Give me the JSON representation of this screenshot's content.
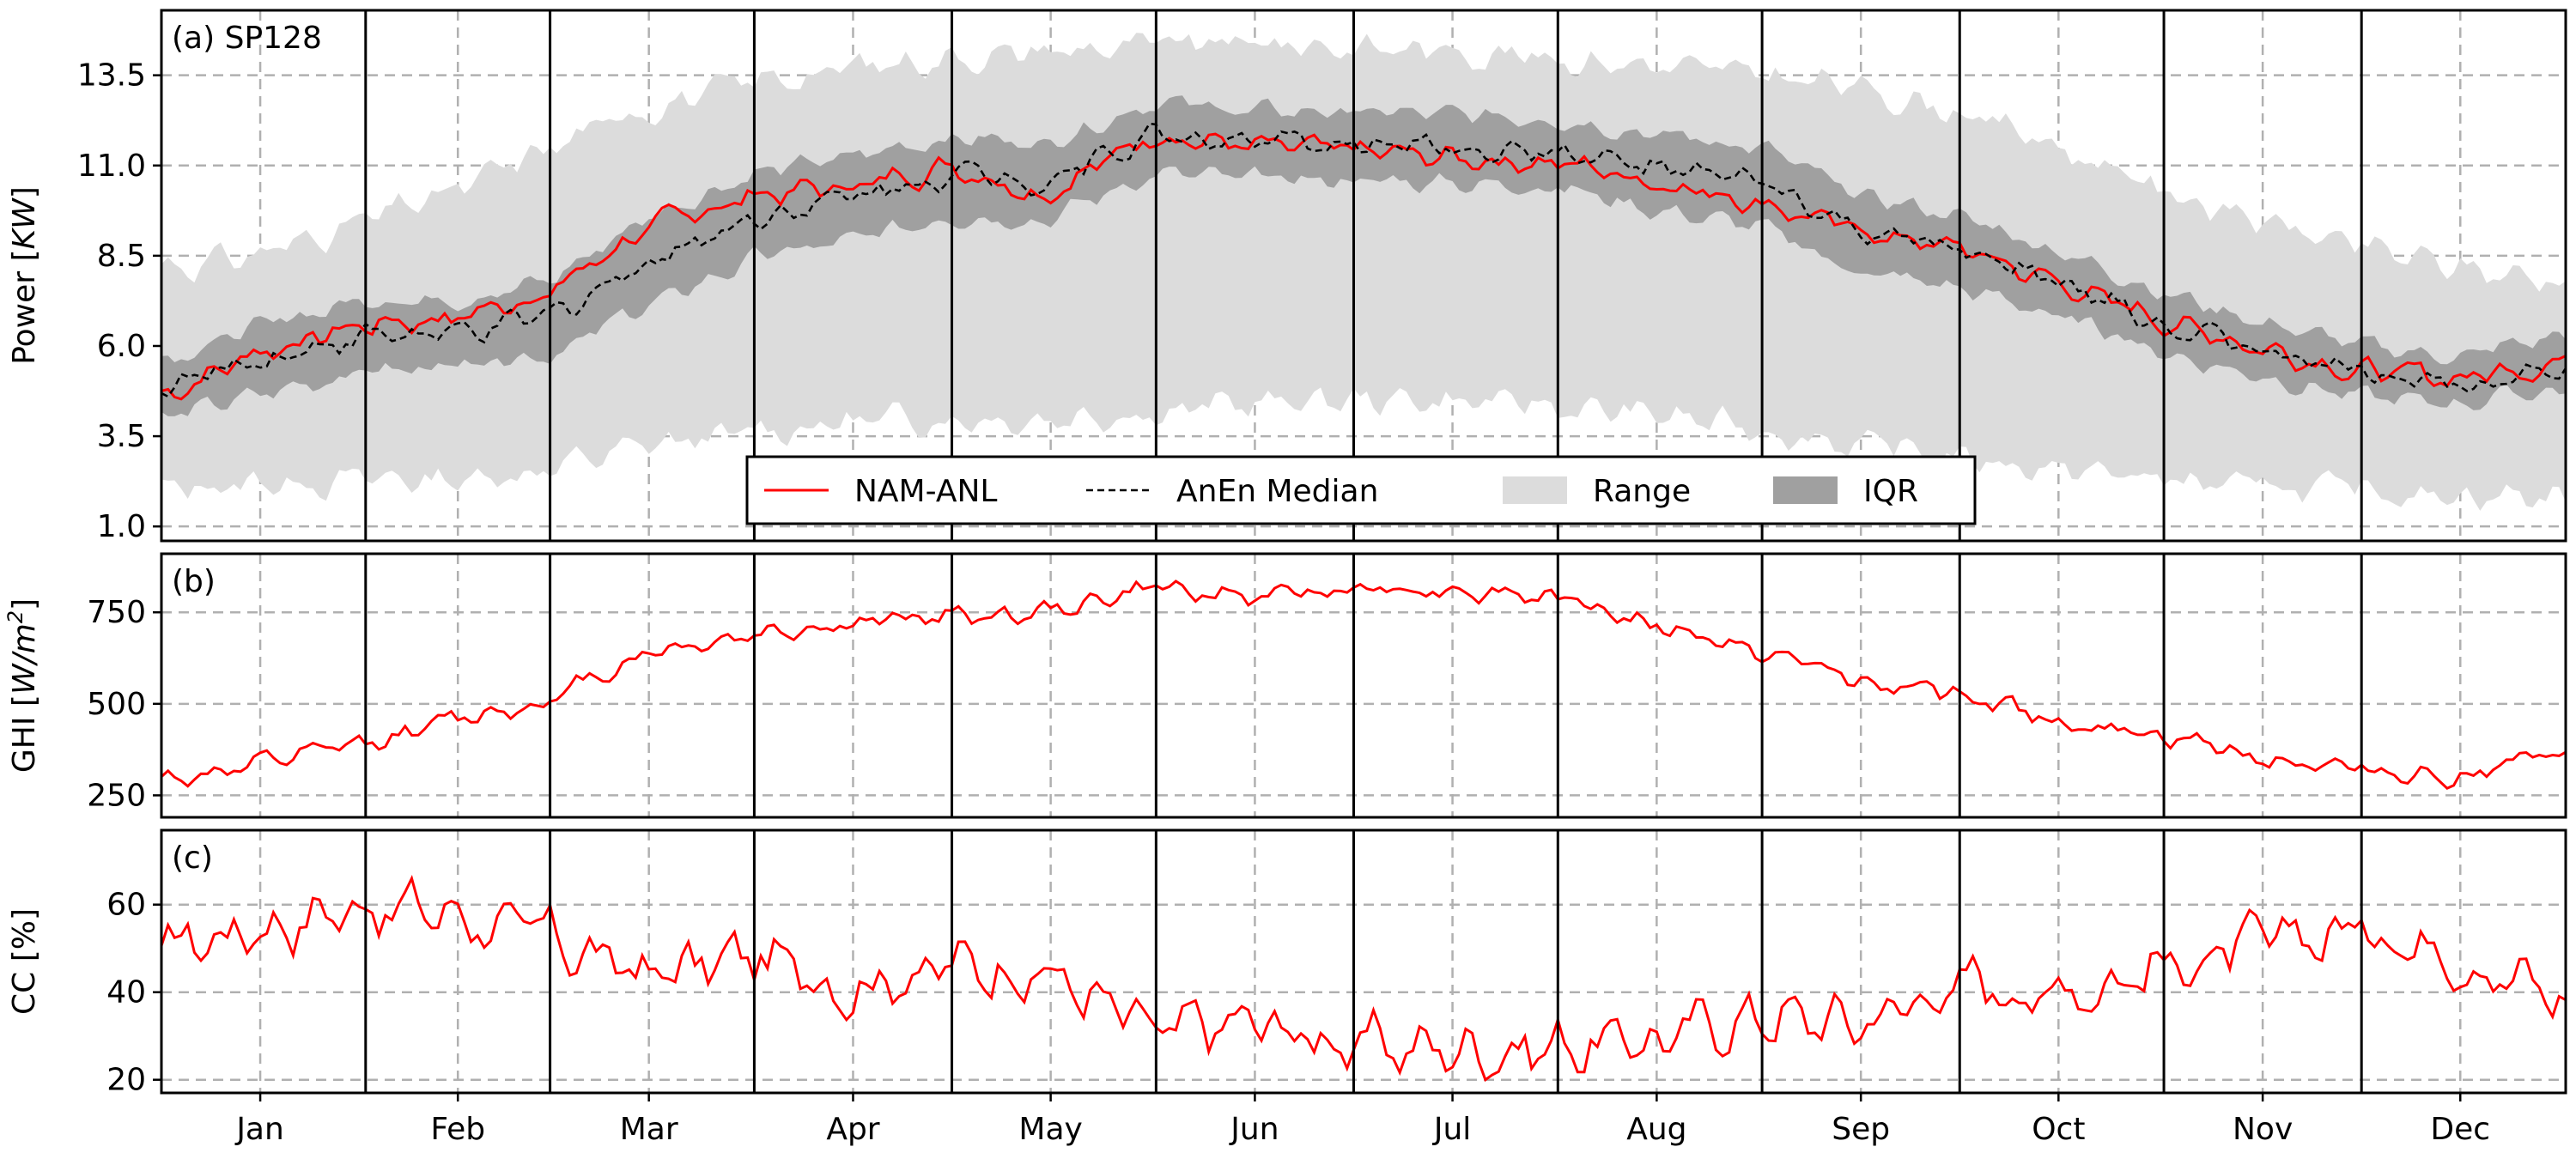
{
  "chart_data": [
    {
      "panel": "(a) SP128",
      "type": "line",
      "title": "(a) SP128",
      "ylabel": "Power [KW]",
      "ylabel_plain": "Power [",
      "ylabel_italic": "KW",
      "ylabel_close": "]",
      "ylim": [
        0.6,
        15.3
      ],
      "yticks": [
        1.0,
        3.5,
        6.0,
        8.5,
        11.0,
        13.5
      ],
      "ytick_labels": [
        "1.0",
        "3.5",
        "6.0",
        "8.5",
        "11.0",
        "13.5"
      ],
      "x_unit": "day of year",
      "xlim": [
        1,
        366
      ],
      "grid": true,
      "legend": {
        "placement": "lower-center",
        "entries": [
          {
            "label": "NAM-ANL",
            "style": "solid-red"
          },
          {
            "label": "AnEn Median",
            "style": "dashed-black"
          },
          {
            "label": "Range",
            "style": "fill-lightgray"
          },
          {
            "label": "IQR",
            "style": "fill-darkgray"
          }
        ]
      },
      "series": [
        {
          "name": "NAM-ANL",
          "color": "#ff0000",
          "x": [
            1,
            15,
            32,
            46,
            60,
            74,
            91,
            105,
            121,
            135,
            152,
            166,
            182,
            196,
            213,
            227,
            244,
            258,
            274,
            288,
            305,
            319,
            335,
            349,
            366
          ],
          "values": [
            4.6,
            5.8,
            6.6,
            6.8,
            7.5,
            9.2,
            10.2,
            10.4,
            11.0,
            10.2,
            11.9,
            11.5,
            11.4,
            11.2,
            11.1,
            10.6,
            10.0,
            9.2,
            8.7,
            7.8,
            6.7,
            6.0,
            5.3,
            5.1,
            5.6
          ]
        },
        {
          "name": "AnEn Median",
          "color": "#000000",
          "x": [
            1,
            15,
            32,
            46,
            60,
            74,
            91,
            105,
            121,
            135,
            152,
            166,
            182,
            196,
            213,
            227,
            244,
            258,
            274,
            288,
            305,
            319,
            335,
            349,
            366
          ],
          "values": [
            4.8,
            5.6,
            6.3,
            6.3,
            6.8,
            8.3,
            9.6,
            10.1,
            10.8,
            10.6,
            11.9,
            11.6,
            11.6,
            11.5,
            11.4,
            10.9,
            10.5,
            9.2,
            8.6,
            7.8,
            6.6,
            5.9,
            5.3,
            5.0,
            5.5
          ]
        },
        {
          "name": "Range",
          "color": "#dcdcdc",
          "x": [
            1,
            15,
            32,
            46,
            60,
            74,
            91,
            105,
            121,
            135,
            152,
            166,
            182,
            196,
            213,
            227,
            244,
            258,
            274,
            288,
            305,
            319,
            335,
            349,
            366
          ],
          "low": [
            2.0,
            2.2,
            2.3,
            2.3,
            2.6,
            3.2,
            3.6,
            3.9,
            4.0,
            4.0,
            4.2,
            4.4,
            4.5,
            4.5,
            4.3,
            4.1,
            3.7,
            3.3,
            2.9,
            2.6,
            2.3,
            2.1,
            2.0,
            1.9,
            1.8
          ],
          "high": [
            8.2,
            8.5,
            9.5,
            10.3,
            11.5,
            12.6,
            13.3,
            13.7,
            14.0,
            14.2,
            14.3,
            14.4,
            14.3,
            14.2,
            14.0,
            13.8,
            13.5,
            13.2,
            12.5,
            11.6,
            10.3,
            9.5,
            8.7,
            8.2,
            7.8
          ]
        },
        {
          "name": "IQR",
          "color": "#a0a0a0",
          "x": [
            1,
            15,
            32,
            46,
            60,
            74,
            91,
            105,
            121,
            135,
            152,
            166,
            182,
            196,
            213,
            227,
            244,
            258,
            274,
            288,
            305,
            319,
            335,
            349,
            366
          ],
          "low": [
            4.0,
            4.6,
            5.3,
            5.4,
            5.8,
            7.0,
            8.4,
            8.9,
            9.6,
            9.5,
            10.8,
            10.6,
            10.6,
            10.5,
            10.4,
            9.8,
            9.3,
            8.1,
            7.6,
            6.9,
            5.8,
            5.2,
            4.6,
            4.4,
            4.8
          ],
          "high": [
            5.6,
            6.5,
            7.3,
            7.3,
            7.8,
            9.5,
            10.8,
            11.2,
            11.8,
            11.6,
            12.8,
            12.5,
            12.5,
            12.4,
            12.3,
            11.9,
            11.5,
            10.2,
            9.6,
            8.7,
            7.5,
            6.7,
            6.0,
            5.7,
            6.3
          ]
        }
      ]
    },
    {
      "panel": "(b)",
      "type": "line",
      "title": "(b)",
      "ylabel": "GHI [W/m2]",
      "ylabel_plain": "GHI [",
      "ylabel_italic": "W/m",
      "ylabel_sup": "2",
      "ylabel_close": "]",
      "ylim": [
        190,
        910
      ],
      "yticks": [
        250,
        500,
        750
      ],
      "ytick_labels": [
        "250",
        "500",
        "750"
      ],
      "x_unit": "day of year",
      "xlim": [
        1,
        366
      ],
      "grid": true,
      "series": [
        {
          "name": "GHI",
          "color": "#ff0000",
          "x": [
            1,
            15,
            32,
            46,
            60,
            74,
            91,
            105,
            121,
            135,
            152,
            166,
            182,
            196,
            213,
            227,
            244,
            258,
            274,
            288,
            305,
            319,
            335,
            349,
            366
          ],
          "values": [
            290,
            330,
            390,
            460,
            510,
            640,
            690,
            720,
            740,
            750,
            820,
            790,
            820,
            815,
            790,
            720,
            640,
            570,
            520,
            460,
            410,
            360,
            320,
            300,
            360
          ]
        }
      ]
    },
    {
      "panel": "(c)",
      "type": "line",
      "title": "(c)",
      "ylabel": "CC [%]",
      "ylim": [
        17,
        77
      ],
      "yticks": [
        20,
        40,
        60
      ],
      "ytick_labels": [
        "20",
        "40",
        "60"
      ],
      "x_unit": "day of year",
      "xlim": [
        1,
        366
      ],
      "xtick_labels": [
        "Jan",
        "Feb",
        "Mar",
        "Apr",
        "May",
        "Jun",
        "Jul",
        "Aug",
        "Sep",
        "Oct",
        "Nov",
        "Dec"
      ],
      "xticks": [
        16,
        46,
        75,
        106,
        136,
        167,
        197,
        228,
        259,
        289,
        320,
        350
      ],
      "month_boundaries": [
        32,
        60,
        91,
        121,
        152,
        182,
        213,
        244,
        274,
        305,
        335
      ],
      "grid": true,
      "series": [
        {
          "name": "CC",
          "color": "#ff0000",
          "x": [
            1,
            15,
            32,
            46,
            60,
            74,
            91,
            105,
            121,
            135,
            152,
            166,
            182,
            196,
            213,
            227,
            244,
            258,
            274,
            288,
            305,
            319,
            335,
            349,
            366
          ],
          "values": [
            50,
            55,
            60,
            58,
            52,
            44,
            48,
            42,
            46,
            45,
            30,
            33,
            28,
            27,
            28,
            29,
            35,
            33,
            42,
            40,
            46,
            50,
            55,
            50,
            38
          ]
        }
      ]
    }
  ]
}
